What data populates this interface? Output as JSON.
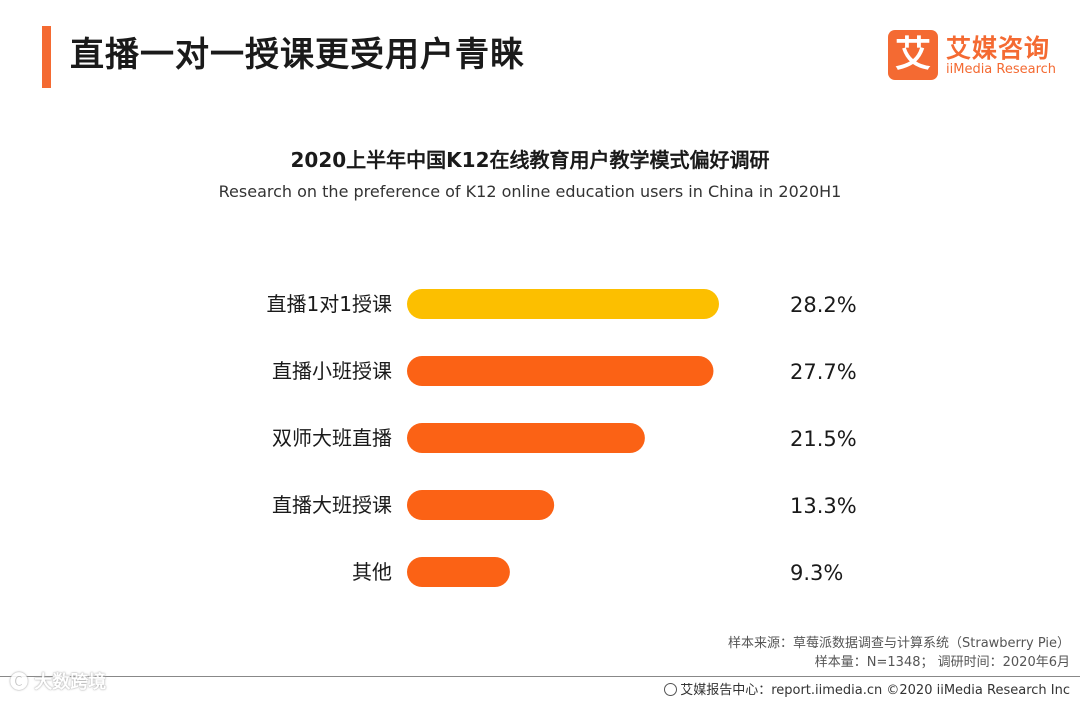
{
  "header": {
    "title": "直播一对一授课更受用户青睐",
    "accent_color": "#f46a32"
  },
  "logo": {
    "mark": "艾",
    "name_cn": "艾媒咨询",
    "name_en": "iiMedia Research"
  },
  "chart_data": {
    "type": "bar",
    "orientation": "horizontal",
    "title": "2020上半年中国K12在线教育用户教学模式偏好调研",
    "subtitle": "Research on the preference of K12 online education users in China in 2020H1",
    "categories": [
      "直播1对1授课",
      "直播小班授课",
      "双师大班直播",
      "直播大班授课",
      "其他"
    ],
    "values": [
      28.2,
      27.7,
      21.5,
      13.3,
      9.3
    ],
    "value_labels": [
      "28.2%",
      "27.7%",
      "21.5%",
      "13.3%",
      "9.3%"
    ],
    "unit": "%",
    "colors": [
      "#fcbf00",
      "#fb6215",
      "#fb6215",
      "#fb6215",
      "#fb6215"
    ],
    "xlim": [
      0,
      28.2
    ],
    "grid": false,
    "legend": "none"
  },
  "source": {
    "line1": "样本来源：草莓派数据调查与计算系统（Strawberry Pie）",
    "line2": "样本量：N=1348； 调研时间：2020年6月"
  },
  "footer": {
    "text": "艾媒报告中心：report.iimedia.cn ©2020 iiMedia Research Inc"
  },
  "watermark": {
    "text": "🅒 大数跨境"
  }
}
